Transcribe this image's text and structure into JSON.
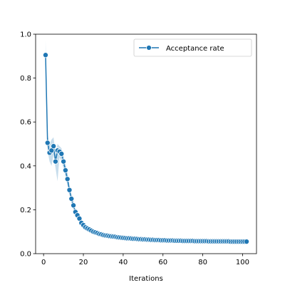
{
  "chart_data": {
    "type": "line",
    "title": "",
    "xlabel": "Iterations",
    "ylabel": "",
    "xlim": [
      -4,
      107
    ],
    "ylim": [
      0,
      1.0
    ],
    "xticks": [
      0,
      20,
      40,
      60,
      80,
      100
    ],
    "yticks": [
      0.0,
      0.2,
      0.4,
      0.6,
      0.8,
      1.0
    ],
    "x_tick_labels": [
      "0",
      "20",
      "40",
      "60",
      "80",
      "100"
    ],
    "y_tick_labels": [
      "0.0",
      "0.2",
      "0.4",
      "0.6",
      "0.8",
      "1.0"
    ],
    "legend": {
      "position": "top-right",
      "entries": [
        "Acceptance rate"
      ]
    },
    "grid": false,
    "colors": {
      "line": "#1f77b4",
      "band": "#aec7e8",
      "marker_edge": "#ffffff"
    },
    "series": [
      {
        "name": "Acceptance rate",
        "x": [
          1,
          2,
          3,
          4,
          5,
          6,
          7,
          8,
          9,
          10,
          11,
          12,
          13,
          14,
          15,
          16,
          17,
          18,
          19,
          20,
          21,
          22,
          23,
          24,
          25,
          26,
          27,
          28,
          29,
          30,
          31,
          32,
          33,
          34,
          35,
          36,
          37,
          38,
          39,
          40,
          41,
          42,
          43,
          44,
          45,
          46,
          47,
          48,
          49,
          50,
          51,
          52,
          53,
          54,
          55,
          56,
          57,
          58,
          59,
          60,
          61,
          62,
          63,
          64,
          65,
          66,
          67,
          68,
          69,
          70,
          71,
          72,
          73,
          74,
          75,
          76,
          77,
          78,
          79,
          80,
          81,
          82,
          83,
          84,
          85,
          86,
          87,
          88,
          89,
          90,
          91,
          92,
          93,
          94,
          95,
          96,
          97,
          98,
          99,
          100,
          101,
          102
        ],
        "y": [
          0.905,
          0.505,
          0.46,
          0.47,
          0.49,
          0.42,
          0.47,
          0.465,
          0.455,
          0.42,
          0.38,
          0.34,
          0.29,
          0.25,
          0.22,
          0.19,
          0.175,
          0.16,
          0.14,
          0.13,
          0.12,
          0.115,
          0.11,
          0.105,
          0.1,
          0.097,
          0.094,
          0.09,
          0.088,
          0.085,
          0.083,
          0.082,
          0.08,
          0.079,
          0.078,
          0.077,
          0.075,
          0.074,
          0.073,
          0.072,
          0.071,
          0.07,
          0.07,
          0.069,
          0.068,
          0.068,
          0.067,
          0.066,
          0.066,
          0.065,
          0.065,
          0.064,
          0.064,
          0.063,
          0.063,
          0.062,
          0.062,
          0.062,
          0.061,
          0.061,
          0.061,
          0.06,
          0.06,
          0.06,
          0.06,
          0.059,
          0.059,
          0.059,
          0.059,
          0.058,
          0.058,
          0.058,
          0.058,
          0.058,
          0.058,
          0.057,
          0.057,
          0.057,
          0.057,
          0.057,
          0.057,
          0.057,
          0.056,
          0.056,
          0.056,
          0.056,
          0.056,
          0.056,
          0.056,
          0.056,
          0.056,
          0.056,
          0.056,
          0.055,
          0.055,
          0.055,
          0.055,
          0.055,
          0.055,
          0.055,
          0.055,
          0.055
        ],
        "ci_low": [
          0.84,
          0.47,
          0.42,
          0.4,
          0.45,
          0.39,
          0.33,
          0.44,
          0.42,
          0.39,
          0.35,
          0.31,
          0.27,
          0.23,
          0.2,
          0.18,
          0.16,
          0.15,
          0.13,
          0.12,
          0.11,
          0.105,
          0.1,
          0.095,
          0.092,
          0.089,
          0.086,
          0.083,
          0.081,
          0.079,
          0.077,
          0.076,
          0.074,
          0.073,
          0.072,
          0.071,
          0.07,
          0.069,
          0.068,
          0.067,
          0.066,
          0.065,
          0.065,
          0.064,
          0.063,
          0.063,
          0.062,
          0.061,
          0.061,
          0.06,
          0.06,
          0.059,
          0.059,
          0.058,
          0.058,
          0.057,
          0.057,
          0.057,
          0.056,
          0.056,
          0.056,
          0.055,
          0.055,
          0.055,
          0.055,
          0.054,
          0.054,
          0.054,
          0.054,
          0.053,
          0.053,
          0.053,
          0.053,
          0.053,
          0.053,
          0.052,
          0.052,
          0.052,
          0.052,
          0.052,
          0.052,
          0.052,
          0.051,
          0.051,
          0.051,
          0.051,
          0.051,
          0.051,
          0.051,
          0.051,
          0.051,
          0.051,
          0.051,
          0.05,
          0.05,
          0.05,
          0.05,
          0.05,
          0.05,
          0.05,
          0.05,
          0.05
        ],
        "ci_high": [
          0.97,
          0.54,
          0.5,
          0.52,
          0.53,
          0.45,
          0.5,
          0.49,
          0.48,
          0.45,
          0.41,
          0.37,
          0.31,
          0.27,
          0.24,
          0.2,
          0.19,
          0.17,
          0.15,
          0.14,
          0.13,
          0.125,
          0.12,
          0.115,
          0.108,
          0.105,
          0.102,
          0.097,
          0.095,
          0.091,
          0.089,
          0.088,
          0.086,
          0.085,
          0.084,
          0.083,
          0.08,
          0.079,
          0.078,
          0.077,
          0.076,
          0.075,
          0.075,
          0.074,
          0.073,
          0.073,
          0.072,
          0.071,
          0.071,
          0.07,
          0.07,
          0.069,
          0.069,
          0.068,
          0.068,
          0.067,
          0.067,
          0.067,
          0.066,
          0.066,
          0.066,
          0.065,
          0.065,
          0.065,
          0.065,
          0.064,
          0.064,
          0.064,
          0.064,
          0.063,
          0.063,
          0.063,
          0.063,
          0.063,
          0.063,
          0.062,
          0.062,
          0.062,
          0.062,
          0.062,
          0.062,
          0.062,
          0.061,
          0.061,
          0.061,
          0.061,
          0.061,
          0.061,
          0.061,
          0.061,
          0.061,
          0.061,
          0.061,
          0.06,
          0.06,
          0.06,
          0.06,
          0.06,
          0.06,
          0.06,
          0.06,
          0.06
        ]
      }
    ]
  }
}
